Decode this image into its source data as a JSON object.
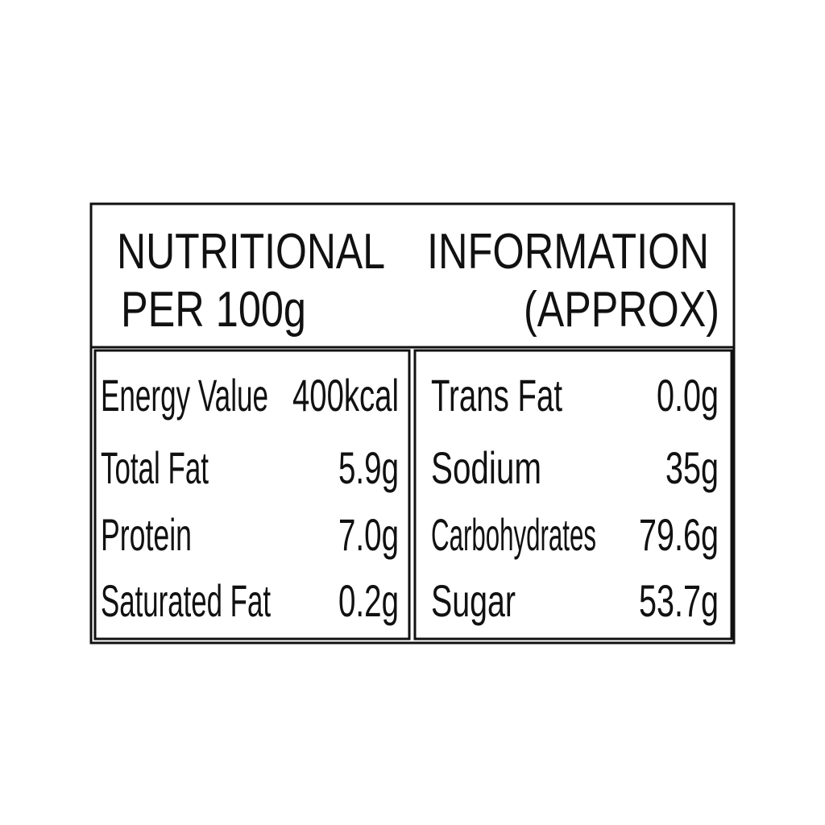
{
  "header": {
    "line1": [
      "NUTRITIONAL",
      "INFORMATION"
    ],
    "line2": [
      "PER 100g",
      "(APPROX)"
    ]
  },
  "table": {
    "left": [
      [
        "Energy Value",
        "400kcal"
      ],
      [
        "Total Fat",
        "5.9g"
      ],
      [
        "Protein",
        "7.0g"
      ],
      [
        "Saturated Fat",
        "0.2g"
      ]
    ],
    "right": [
      [
        "Trans Fat",
        "0.0g"
      ],
      [
        "Sodium",
        "35g"
      ],
      [
        "Carbohydrates",
        "79.6g"
      ],
      [
        "Sugar",
        "53.7g"
      ]
    ]
  }
}
